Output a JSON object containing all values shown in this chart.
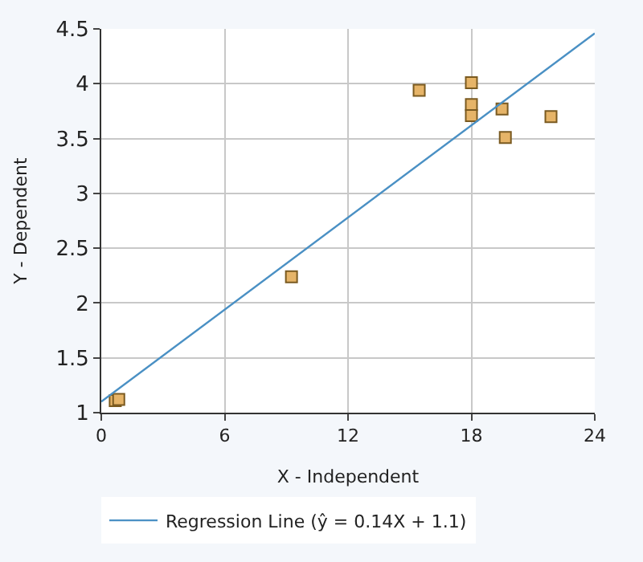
{
  "chart_data": {
    "type": "scatter",
    "xlabel": "X - Independent",
    "ylabel": "Y - Dependent",
    "series": [
      {
        "marker": "square",
        "color": "#e6b468",
        "x": [
          0.68,
          0.85,
          9.25,
          15.46,
          18.0,
          18.0,
          18.0,
          19.49,
          19.65,
          21.87
        ],
        "values": [
          1.11,
          1.12,
          2.24,
          3.94,
          4.01,
          3.81,
          3.71,
          3.77,
          3.51,
          3.7
        ]
      },
      {
        "type": "line",
        "name": "Regression Line (ŷ = 0.14X + 1.1)",
        "color": "#4a90c4",
        "x": [
          0,
          24
        ],
        "values": [
          1.1,
          4.46
        ]
      }
    ],
    "xlim": [
      0,
      24
    ],
    "xticks": [
      0,
      6,
      12,
      18,
      24
    ],
    "ylim": [
      1,
      4.5
    ],
    "yticks": [
      1,
      1.5,
      2,
      2.5,
      3,
      3.5,
      4,
      4.5
    ],
    "grid": true,
    "legend": "bottom left"
  }
}
